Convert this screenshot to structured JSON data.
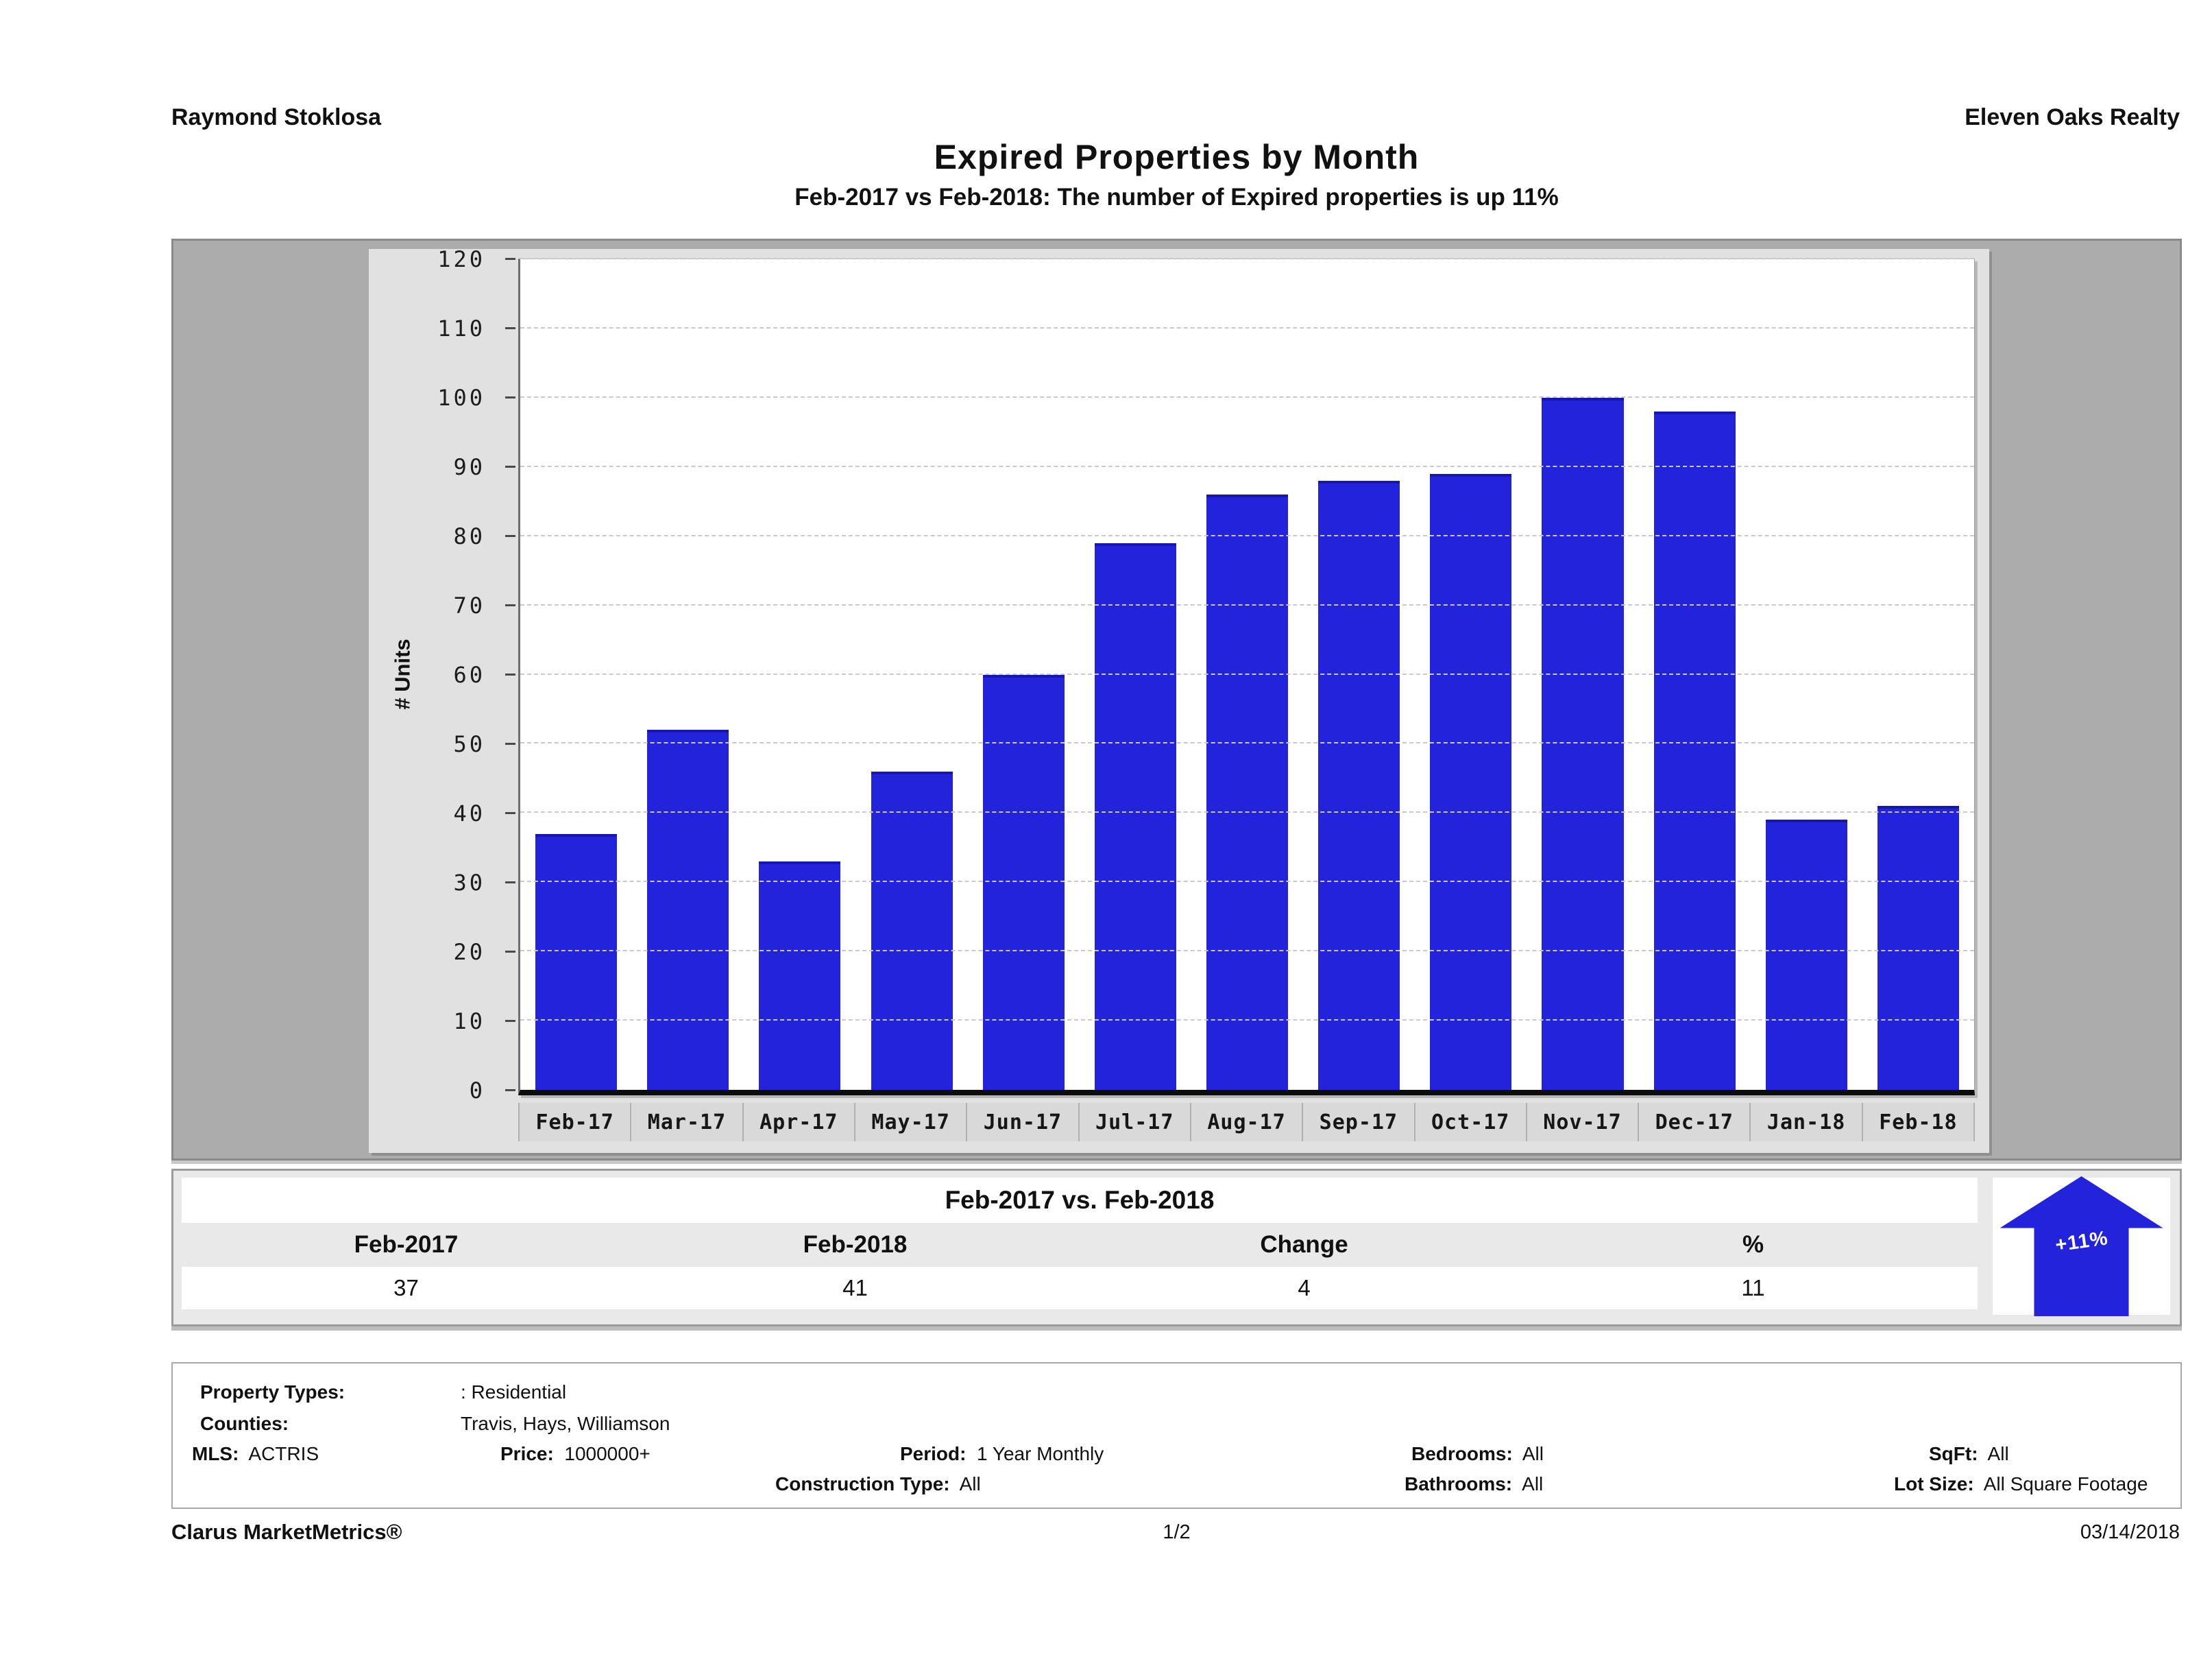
{
  "header": {
    "agent": "Raymond Stoklosa",
    "company": "Eleven Oaks Realty"
  },
  "title": "Expired Properties by Month",
  "subtitle": "Feb-2017 vs Feb-2018: The number of Expired  properties is up 11%",
  "chart_data": {
    "type": "bar",
    "title": "Expired Properties by Month",
    "categories": [
      "Feb-17",
      "Mar-17",
      "Apr-17",
      "May-17",
      "Jun-17",
      "Jul-17",
      "Aug-17",
      "Sep-17",
      "Oct-17",
      "Nov-17",
      "Dec-17",
      "Jan-18",
      "Feb-18"
    ],
    "values": [
      37,
      52,
      33,
      46,
      60,
      79,
      86,
      88,
      89,
      100,
      98,
      39,
      41
    ],
    "xlabel": "",
    "ylabel": "# Units",
    "ylim": [
      0,
      120
    ],
    "ytick_step": 10,
    "grid": true,
    "legend": "none",
    "bar_color": "#2323dc"
  },
  "comparison": {
    "title": "Feb-2017 vs. Feb-2018",
    "headers": [
      "Feb-2017",
      "Feb-2018",
      "Change",
      "%"
    ],
    "values": [
      "37",
      "41",
      "4",
      "11"
    ],
    "badge": "+11%"
  },
  "filters": {
    "property_types_label": "Property Types:",
    "property_types_value": ": Residential",
    "counties_label": "Counties:",
    "counties_value": "Travis, Hays, Williamson",
    "mls_label": "MLS:",
    "mls_value": "ACTRIS",
    "price_label": "Price:",
    "price_value": "1000000+",
    "period_label": "Period:",
    "period_value": "1 Year Monthly",
    "bedrooms_label": "Bedrooms:",
    "bedrooms_value": "All",
    "sqft_label": "SqFt:",
    "sqft_value": "All",
    "construction_label": "Construction Type:",
    "construction_value": "All",
    "bathrooms_label": "Bathrooms:",
    "bathrooms_value": "All",
    "lot_size_label": "Lot Size:",
    "lot_size_value": "All Square Footage"
  },
  "footer": {
    "brand": "Clarus MarketMetrics®",
    "page": "1/2",
    "date": "03/14/2018"
  },
  "colors": {
    "bar": "#2323dc",
    "frame_gray": "#acacac",
    "panel_gray": "#e1e1e1"
  }
}
